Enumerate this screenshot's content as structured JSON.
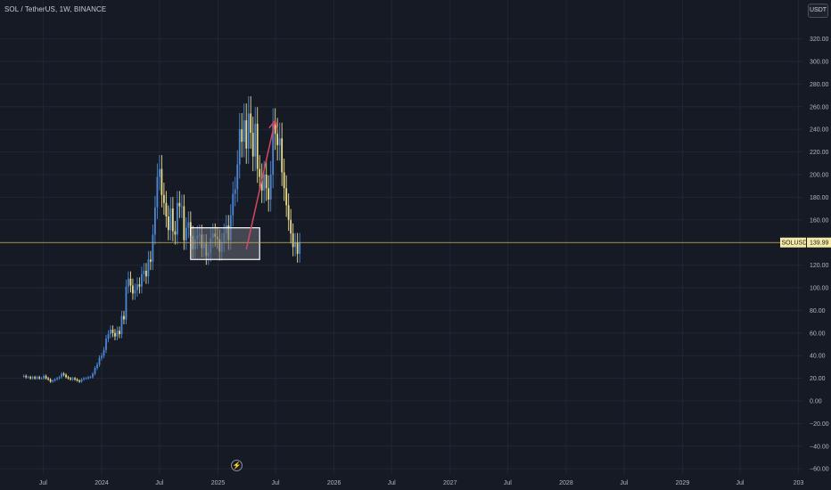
{
  "header": {
    "title": "SOL / TetherUS, 1W, BINANCE",
    "unit_button": "USDT",
    "event_icon": "⚡"
  },
  "colors": {
    "background": "#161a25",
    "grid": "#222633",
    "candle_up": "#4a87d6",
    "candle_down": "#e8dc8a",
    "price_line": "#c9b458",
    "arrow": "#d7475f",
    "box_border": "#ffffff",
    "box_fill": "#6b6e76"
  },
  "chart_data": {
    "type": "candlestick",
    "title": "SOL / TetherUS, 1W, BINANCE",
    "y_axis": {
      "ticks": [
        320,
        300,
        280,
        260,
        240,
        220,
        200,
        180,
        160,
        140,
        120,
        100,
        80,
        60,
        40,
        20,
        0,
        -20,
        -40,
        -60
      ],
      "tick_labels": [
        "320.00",
        "300.00",
        "280.00",
        "260.00",
        "240.00",
        "220.00",
        "200.00",
        "180.00",
        "160.00",
        "140.00",
        "120.00",
        "100.00",
        "80.00",
        "60.00",
        "40.00",
        "20.00",
        "0.00",
        "−20.00",
        "−40.00",
        "−60.00"
      ],
      "ylim": [
        -60,
        322
      ]
    },
    "x_axis": {
      "tick_labels": [
        "Jul",
        "2024",
        "Jul",
        "2025",
        "Jul",
        "2026",
        "Jul",
        "2027",
        "Jul",
        "2028",
        "Jul",
        "2029",
        "Jul",
        "203"
      ],
      "tick_dates": [
        "2023-07-01",
        "2024-01-01",
        "2024-07-01",
        "2025-01-01",
        "2025-07-01",
        "2026-01-01",
        "2026-07-01",
        "2027-01-01",
        "2027-07-01",
        "2028-01-01",
        "2028-07-01",
        "2029-01-01",
        "2029-07-01",
        "2030-01-01"
      ]
    },
    "last_price": {
      "symbol": "SOLUSDT",
      "label": "139.99",
      "value": 139.99
    },
    "annotations": {
      "box": {
        "x_start": "2024-10-07",
        "x_end": "2025-05-12",
        "y_top": 153,
        "y_bottom": 125
      },
      "arrow": {
        "from_date": "2025-03-31",
        "from_price": 134,
        "to_date": "2025-06-30",
        "to_price": 248
      }
    },
    "weekly_closes": [
      {
        "start": "2023-05-01",
        "closes": [
          22,
          21,
          21,
          20,
          21,
          20,
          21,
          20,
          20,
          22,
          20,
          19,
          17,
          18,
          19,
          20,
          21,
          24,
          23,
          21,
          20,
          19,
          20,
          19,
          18,
          17,
          19,
          20,
          20,
          21,
          21,
          24,
          29,
          32,
          38,
          40,
          45,
          55,
          59,
          63,
          60,
          57,
          62,
          59,
          75,
          72,
          101,
          108,
          102,
          95,
          98,
          103,
          101,
          112,
          115,
          110,
          125,
          123,
          147,
          171,
          198,
          205,
          182,
          175,
          163,
          151,
          170,
          150,
          147,
          175,
          172,
          172,
          142,
          153,
          158,
          146,
          134,
          143,
          146,
          147,
          135,
          139,
          128,
          131,
          144,
          148,
          145,
          143,
          132,
          140,
          148,
          155,
          142,
          164,
          183,
          187,
          209,
          240,
          229,
          248,
          223,
          254,
          237,
          216,
          245,
          205,
          198,
          186,
          200,
          188,
          178,
          200,
          244,
          236,
          226,
          232,
          202,
          188,
          173,
          160,
          148,
          136,
          140,
          130,
          140
        ]
      }
    ]
  }
}
